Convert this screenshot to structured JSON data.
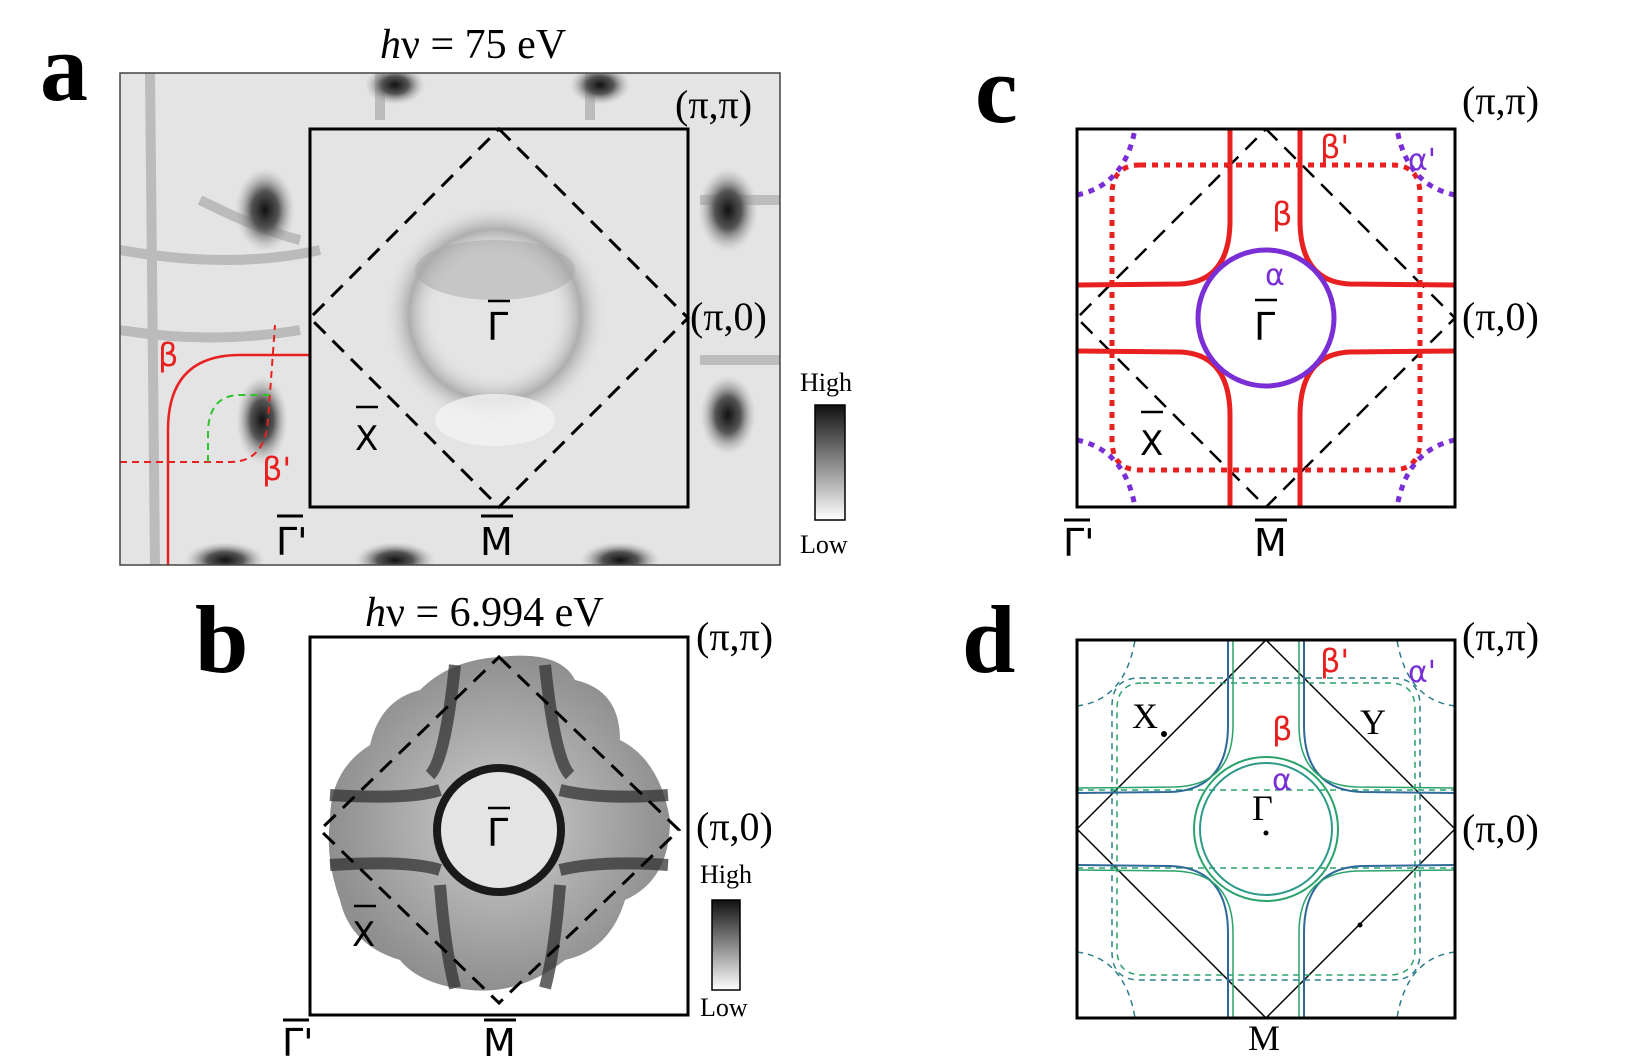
{
  "panels": {
    "a": {
      "letter": "a",
      "energy_label": "hν = 75 eV",
      "corner_pi_pi": "(π,π)",
      "corner_pi_0": "(π,0)",
      "gamma": "Γ",
      "x_point": "X",
      "m_point": "M",
      "gamma_prime": "Γ'",
      "beta": "β",
      "beta_prime": "β'",
      "colorbar_high": "High",
      "colorbar_low": "Low"
    },
    "b": {
      "letter": "b",
      "energy_label": "hν = 6.994 eV",
      "corner_pi_pi": "(π,π)",
      "corner_pi_0": "(π,0)",
      "gamma": "Γ",
      "x_point": "X",
      "m_point": "M",
      "gamma_prime": "Γ'",
      "colorbar_high": "High",
      "colorbar_low": "Low"
    },
    "c": {
      "letter": "c",
      "corner_pi_pi": "(π,π)",
      "corner_pi_0": "(π,0)",
      "gamma": "Γ",
      "x_point": "X",
      "m_point": "M",
      "gamma_prime": "Γ'",
      "alpha": "α",
      "alpha_prime": "α'",
      "beta": "β",
      "beta_prime": "β'"
    },
    "d": {
      "letter": "d",
      "corner_pi_pi": "(π,π)",
      "corner_pi_0": "(π,0)",
      "gamma": "Γ",
      "x_point": "X",
      "y_point": "Y",
      "m_point": "M",
      "alpha": "α",
      "alpha_prime": "α'",
      "beta": "β",
      "beta_prime": "β'"
    }
  },
  "colors": {
    "red_band": "#e8201f",
    "purple_band": "#7a2fd6",
    "green_band": "#2aa36b",
    "teal_band": "#2f7f8a"
  }
}
